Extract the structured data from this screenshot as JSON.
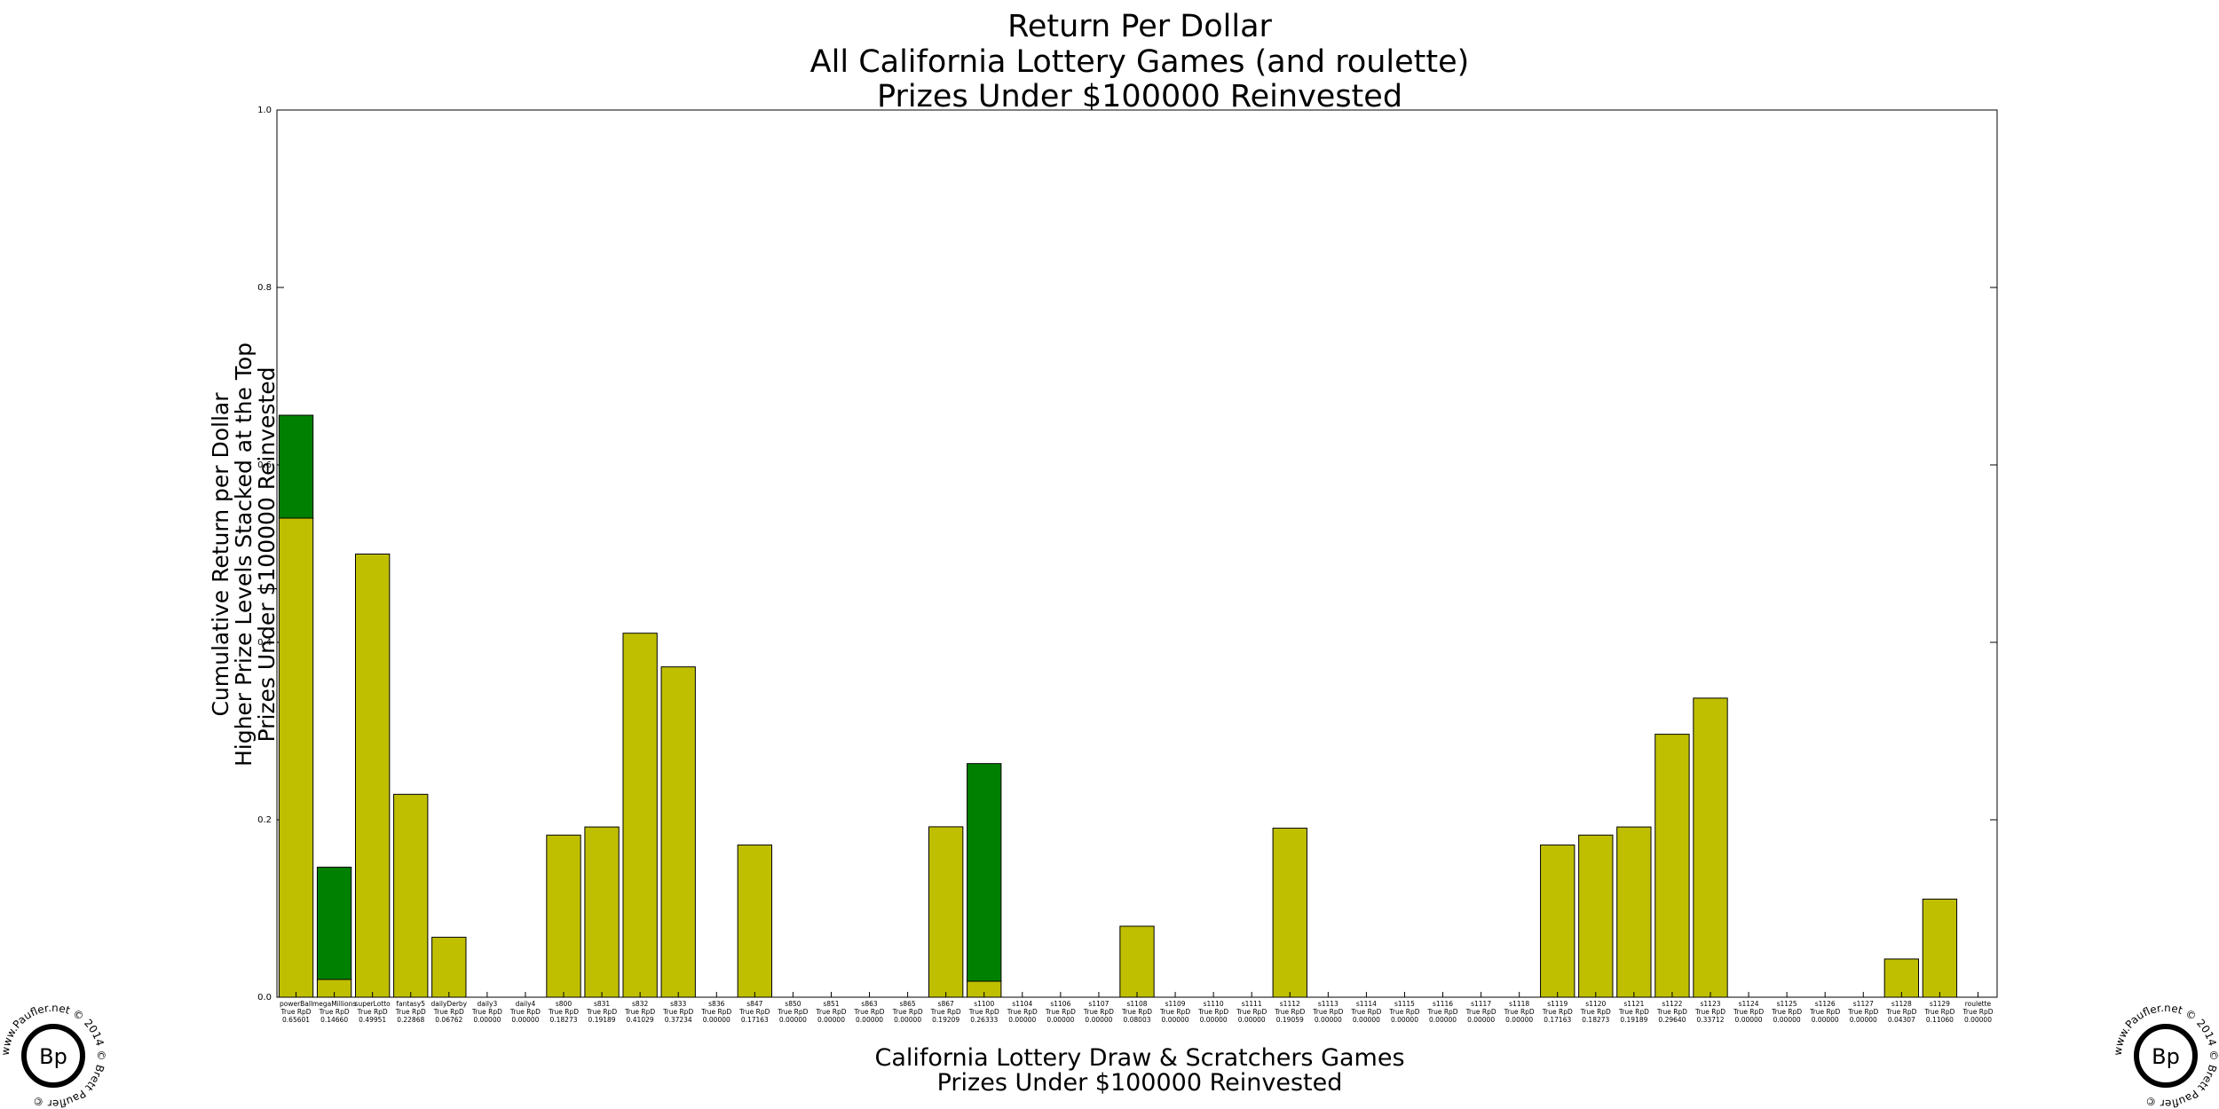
{
  "chart_data": {
    "type": "bar",
    "stacked": true,
    "title": [
      "Return Per Dollar",
      "All California Lottery Games (and roulette)",
      "Prizes Under $100000 Reinvested"
    ],
    "xlabel": [
      "California Lottery Draw & Scratchers Games",
      "Prizes Under $100000 Reinvested"
    ],
    "ylabel": [
      "Cumulative Return per Dollar",
      "Higher Prize Levels Stacked at the Top",
      "Prizes Under $100000 Reinvested"
    ],
    "ylim": [
      0.0,
      1.0
    ],
    "yticks": [
      "0.0",
      "0.2",
      "0.4",
      "0.6",
      "0.8",
      "1.0"
    ],
    "grid": false,
    "tick_label_prefix": "True RpD",
    "categories": [
      "powerBall",
      "megaMillions",
      "superLotto",
      "fantasy5",
      "dailyDerby",
      "daily3",
      "daily4",
      "s800",
      "s831",
      "s832",
      "s833",
      "s836",
      "s847",
      "s850",
      "s851",
      "s863",
      "s865",
      "s867",
      "s1100",
      "s1104",
      "s1106",
      "s1107",
      "s1108",
      "s1109",
      "s1110",
      "s1111",
      "s1112",
      "s1113",
      "s1114",
      "s1115",
      "s1116",
      "s1117",
      "s1118",
      "s1119",
      "s1120",
      "s1121",
      "s1122",
      "s1123",
      "s1124",
      "s1125",
      "s1126",
      "s1127",
      "s1128",
      "s1129",
      "roulette"
    ],
    "true_rpd": [
      "0.65601",
      "0.14660",
      "0.49951",
      "0.22868",
      "0.06762",
      "0.00000",
      "0.00000",
      "0.18273",
      "0.19189",
      "0.41029",
      "0.37234",
      "0.00000",
      "0.17163",
      "0.00000",
      "0.00000",
      "0.00000",
      "0.00000",
      "0.19209",
      "0.26333",
      "0.00000",
      "0.00000",
      "0.00000",
      "0.08003",
      "0.00000",
      "0.00000",
      "0.00000",
      "0.19059",
      "0.00000",
      "0.00000",
      "0.00000",
      "0.00000",
      "0.00000",
      "0.00000",
      "0.17163",
      "0.18273",
      "0.19189",
      "0.29640",
      "0.33712",
      "0.00000",
      "0.00000",
      "0.00000",
      "0.00000",
      "0.04307",
      "0.11060",
      "0.00000"
    ],
    "series": [
      {
        "name": "Prizes Under $100000",
        "color": "#bfbf00",
        "values": [
          0.54,
          0.02,
          0.49951,
          0.22868,
          0.06762,
          0,
          0,
          0.18273,
          0.19189,
          0.41029,
          0.37234,
          0,
          0.17163,
          0,
          0,
          0,
          0,
          0.19209,
          0.018,
          0,
          0,
          0,
          0.08003,
          0,
          0,
          0,
          0.19059,
          0,
          0,
          0,
          0,
          0,
          0,
          0.17163,
          0.18273,
          0.19189,
          0.2964,
          0.33712,
          0,
          0,
          0,
          0,
          0.04307,
          0.1106,
          0
        ]
      },
      {
        "name": "Higher Prize Levels",
        "color": "#008000",
        "values": [
          0.116,
          0.1266,
          0,
          0,
          0,
          0,
          0,
          0,
          0,
          0,
          0,
          0,
          0,
          0,
          0,
          0,
          0,
          0,
          0.24533,
          0,
          0,
          0,
          0,
          0,
          0,
          0,
          0,
          0,
          0,
          0,
          0,
          0,
          0,
          0,
          0,
          0,
          0,
          0,
          0,
          0,
          0,
          0,
          0,
          0,
          0
        ]
      }
    ]
  },
  "logo": {
    "initials": "Bp",
    "circle_text": "www.Paufler.net © 2014 © Brett Paufler © "
  }
}
